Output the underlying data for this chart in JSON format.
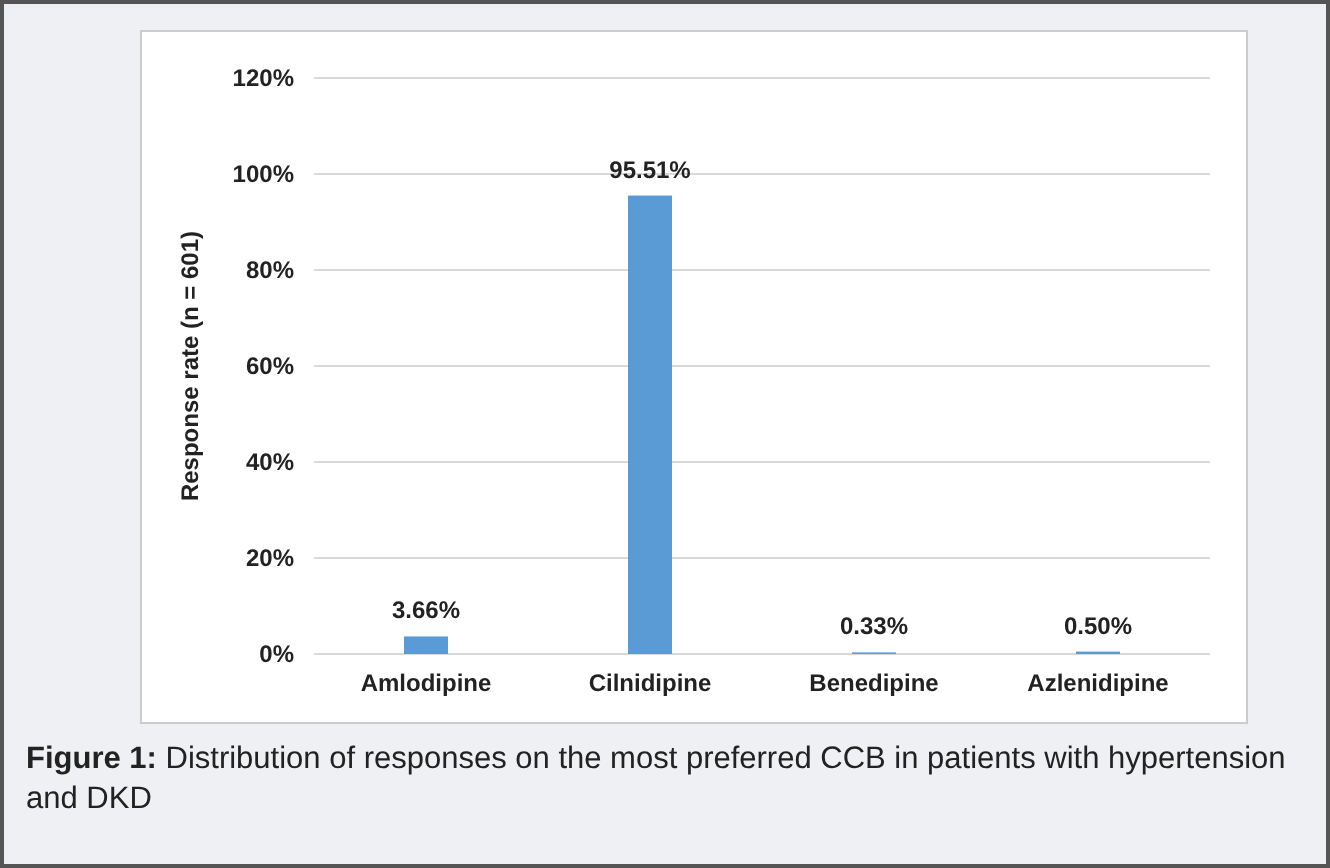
{
  "chart_data": {
    "type": "bar",
    "categories": [
      "Amlodipine",
      "Cilnidipine",
      "Benedipine",
      "Azlenidipine"
    ],
    "values": [
      3.66,
      95.51,
      0.33,
      0.5
    ],
    "value_labels": [
      "3.66%",
      "95.51%",
      "0.33%",
      "0.50%"
    ],
    "color": "#5b9bd5",
    "ylabel": "Response rate (n = 601)",
    "ylim": [
      0,
      120
    ],
    "yticks": [
      {
        "value": 0,
        "label": "0%"
      },
      {
        "value": 20,
        "label": "20%"
      },
      {
        "value": 40,
        "label": "40%"
      },
      {
        "value": 60,
        "label": "60%"
      },
      {
        "value": 80,
        "label": "80%"
      },
      {
        "value": 100,
        "label": "100%"
      },
      {
        "value": 120,
        "label": "120%"
      }
    ],
    "grid": "y",
    "annotations": [
      "Figure 1: Distribution of responses on the most preferred CCB in patients with hypertension and DKD"
    ]
  }
}
